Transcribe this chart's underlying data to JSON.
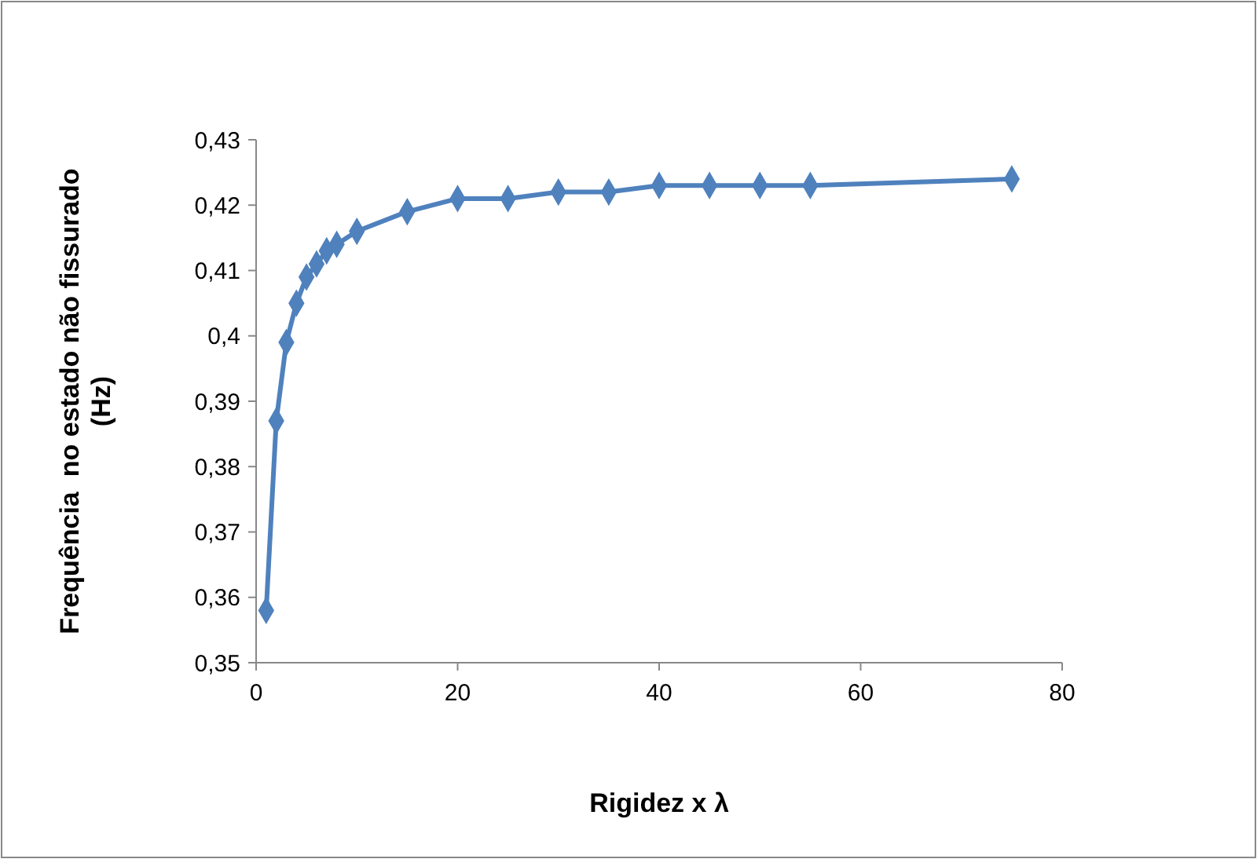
{
  "chart_data": {
    "type": "line",
    "xlabel": "Rigidez x λ",
    "ylabel": "Frequência  no estado não fissurado (Hz)",
    "x": [
      1,
      2,
      3,
      4,
      5,
      6,
      7,
      8,
      10,
      15,
      20,
      25,
      30,
      35,
      40,
      45,
      50,
      55,
      75
    ],
    "series": [
      {
        "color": "#4f81bd",
        "values": [
          0.358,
          0.387,
          0.399,
          0.405,
          0.409,
          0.411,
          0.413,
          0.414,
          0.416,
          0.419,
          0.421,
          0.421,
          0.422,
          0.422,
          0.423,
          0.423,
          0.423,
          0.423,
          0.424
        ]
      }
    ],
    "xlim": [
      0,
      80
    ],
    "xticks": [
      0,
      20,
      40,
      60,
      80
    ],
    "ylim": [
      0.35,
      0.43
    ],
    "yticks": [
      {
        "value": 0.35,
        "label": "0,35"
      },
      {
        "value": 0.36,
        "label": "0,36"
      },
      {
        "value": 0.37,
        "label": "0,37"
      },
      {
        "value": 0.38,
        "label": "0,38"
      },
      {
        "value": 0.39,
        "label": "0,39"
      },
      {
        "value": 0.4,
        "label": "0,4"
      },
      {
        "value": 0.41,
        "label": "0,41"
      },
      {
        "value": 0.42,
        "label": "0,42"
      },
      {
        "value": 0.43,
        "label": "0,43"
      }
    ],
    "marker": "diamond",
    "line_style": "solid",
    "grid": false
  }
}
